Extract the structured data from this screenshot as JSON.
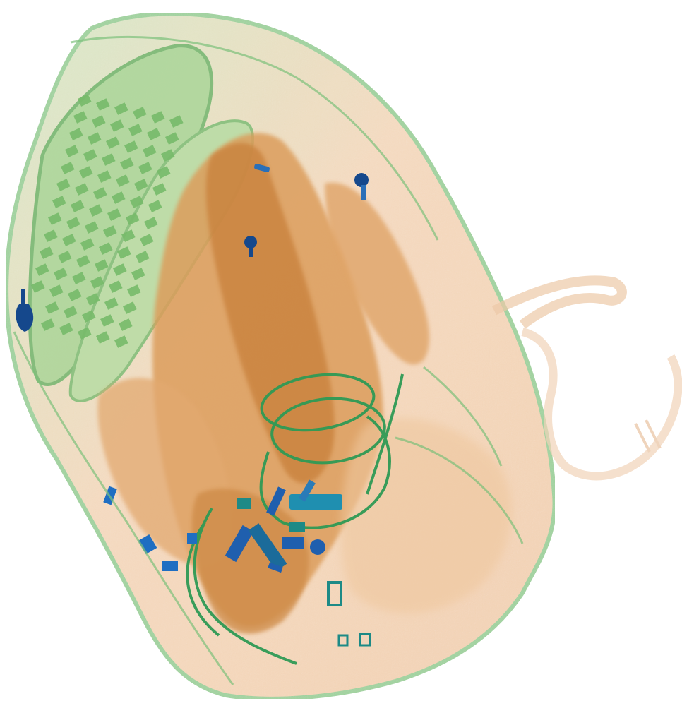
{
  "image": {
    "description_kind": "xray-baggage-scan",
    "background": "#ffffff",
    "colors": {
      "organic_light": "#f2c7a0",
      "organic_mid": "#e3a15c",
      "organic_dark": "#c87a2c",
      "mixed_green": "#7fc47a",
      "mixed_green_dark": "#3f9a52",
      "metal_blue": "#1f5fae",
      "metal_teal": "#1d8a86",
      "metal_dark": "#123e78"
    }
  }
}
